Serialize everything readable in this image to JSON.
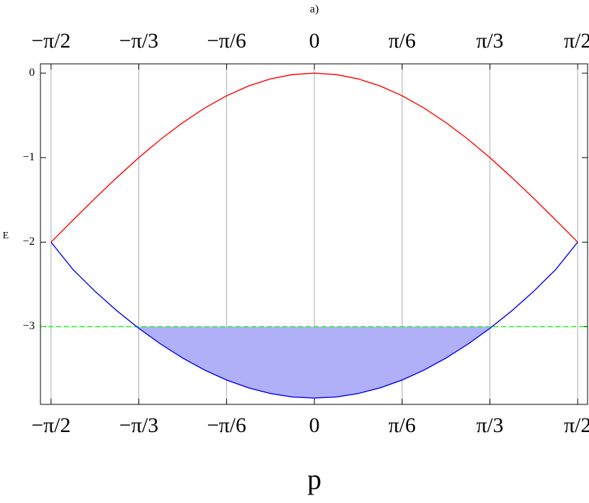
{
  "chart_data": {
    "type": "line",
    "title": "a)",
    "x_label": "p",
    "y_label": "E",
    "x": [
      -1.5708,
      -1.4399,
      -1.309,
      -1.1781,
      -1.0472,
      -0.9163,
      -0.7854,
      -0.6545,
      -0.5236,
      -0.3927,
      -0.2618,
      -0.1309,
      0,
      0.1309,
      0.2618,
      0.3927,
      0.5236,
      0.6545,
      0.7854,
      0.9163,
      1.0472,
      1.1781,
      1.309,
      1.4399,
      1.5708
    ],
    "series": [
      {
        "color": "#ff0000",
        "values": [
          -2,
          -1.739,
          -1.482,
          -1.235,
          -1,
          -0.782,
          -0.586,
          -0.413,
          -0.268,
          -0.152,
          -0.068,
          -0.017,
          0,
          -0.017,
          -0.068,
          -0.152,
          -0.268,
          -0.413,
          -0.586,
          -0.782,
          -1,
          -1.235,
          -1.482,
          -1.739,
          -2
        ]
      },
      {
        "color": "#0000ff",
        "values": [
          -2,
          -2.324,
          -2.581,
          -2.812,
          -3.02,
          -3.207,
          -3.372,
          -3.514,
          -3.632,
          -3.724,
          -3.791,
          -3.832,
          -3.845,
          -3.832,
          -3.791,
          -3.724,
          -3.632,
          -3.514,
          -3.372,
          -3.207,
          -3.02,
          -2.812,
          -2.581,
          -2.324,
          -2
        ],
        "fill_below": -3,
        "fill_color": "#b0b0f8"
      }
    ],
    "hline": {
      "value": -3,
      "color": "#00ff00",
      "dashed": true
    },
    "xlim": [
      -1.634,
      1.63
    ],
    "ylim": [
      -3.92,
      0.11
    ],
    "xticks": [
      {
        "value": -1.5708,
        "label": "−π/2"
      },
      {
        "value": -1.0472,
        "label": "−π/3"
      },
      {
        "value": -0.5236,
        "label": "−π/6"
      },
      0,
      {
        "value": 0.5236,
        "label": "π/6"
      },
      {
        "value": 1.0472,
        "label": "π/3"
      },
      {
        "value": 1.5708,
        "label": "π/2"
      }
    ],
    "yticks": [
      0,
      {
        "value": -1,
        "label": "−1"
      },
      {
        "value": -2,
        "label": "−2"
      },
      {
        "value": -3,
        "label": "−3"
      }
    ],
    "x_grid": true
  }
}
